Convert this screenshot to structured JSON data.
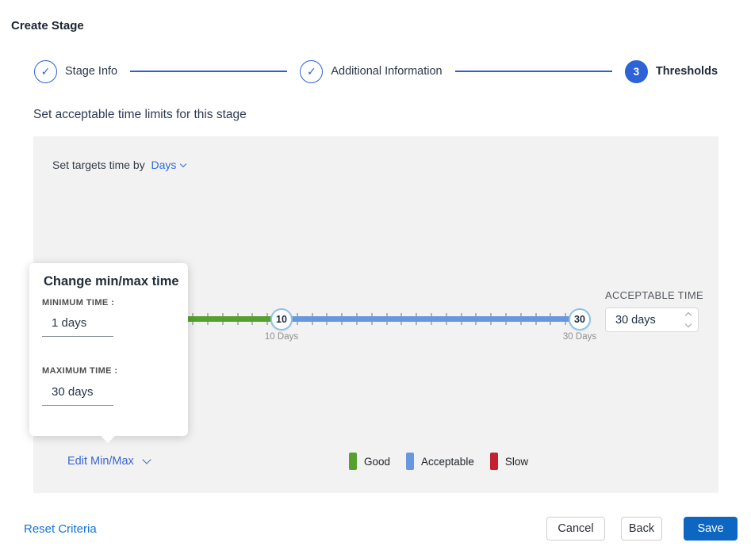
{
  "page": {
    "title": "Create Stage"
  },
  "stepper": {
    "steps": [
      {
        "label": "Stage Info",
        "state": "complete"
      },
      {
        "label": "Additional Information",
        "state": "complete"
      },
      {
        "label": "Thresholds",
        "state": "active",
        "number": "3"
      }
    ]
  },
  "content": {
    "heading": "Set acceptable time limits for this stage"
  },
  "targets": {
    "text": "Set targets time by",
    "selected_unit": "Days"
  },
  "slider": {
    "min_handle_value": "10",
    "max_handle_value": "30",
    "min_handle_label": "10 Days",
    "max_handle_label": "30 Days"
  },
  "acceptable_time": {
    "label": "ACCEPTABLE TIME",
    "value": "30 days"
  },
  "minmax_popup": {
    "title": "Change min/max time",
    "min_label": "MINIMUM TIME :",
    "min_value": "1 days",
    "max_label": "MAXIMUM TIME :",
    "max_value": "30 days"
  },
  "edit_minmax": {
    "label": "Edit Min/Max"
  },
  "legend": [
    {
      "label": "Good",
      "color": "#56a02f"
    },
    {
      "label": "Acceptable",
      "color": "#6897e0"
    },
    {
      "label": "Slow",
      "color": "#c4212e"
    }
  ],
  "footer": {
    "reset": "Reset Criteria",
    "cancel": "Cancel",
    "back": "Back",
    "save": "Save"
  },
  "colors": {
    "accent_blue": "#2d63d6",
    "link_blue": "#2b6ce2",
    "save_blue": "#0c66c2",
    "good_green": "#56a02f",
    "acceptable_blue": "#6897e0",
    "slow_red": "#c4212e",
    "panel_gray": "#f2f2f2"
  }
}
